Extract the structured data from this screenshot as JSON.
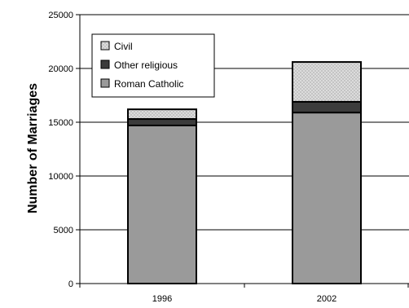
{
  "chart_data": {
    "type": "bar",
    "stacked": true,
    "categories": [
      "1996",
      "2002"
    ],
    "series": [
      {
        "name": "Roman Catholic",
        "values": [
          14700,
          15900
        ],
        "color": "#9a9a9a",
        "pattern": "solid"
      },
      {
        "name": "Other religious",
        "values": [
          600,
          1000
        ],
        "color": "#3c3c3c",
        "pattern": "solid"
      },
      {
        "name": "Civil",
        "values": [
          900,
          3700
        ],
        "color": "#d4d4d4",
        "pattern": "dotted"
      }
    ],
    "legend_order": [
      "Civil",
      "Other religious",
      "Roman Catholic"
    ],
    "title": "",
    "xlabel": "",
    "ylabel": "Number of Marriages",
    "ylim": [
      0,
      25000
    ],
    "yticks": [
      "0",
      "5000",
      "10000",
      "15000",
      "20000",
      "25000"
    ],
    "grid": "horizontal",
    "legend_position": "top-left"
  }
}
